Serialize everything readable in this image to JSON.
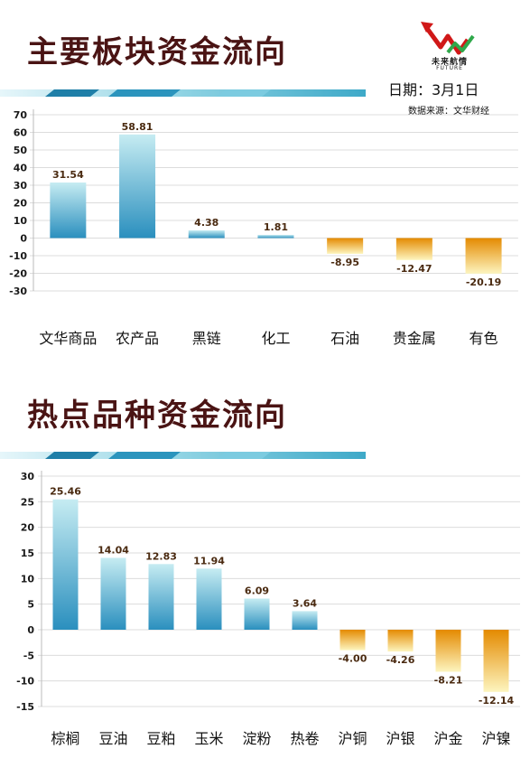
{
  "header": {
    "title1": "主要板块资金流向",
    "title2": "热点品种资金流向",
    "logo_text": "未来航情",
    "logo_sub": "FUTURE",
    "date": "日期：3月1日",
    "source": "数据来源：文华财经"
  },
  "colors": {
    "title": "#4a1414",
    "positive_top": "#c6ecf2",
    "positive_bottom": "#2a8fbe",
    "negative_top": "#e48a00",
    "negative_bottom": "#fdf5bf",
    "divider_blue": "#4ab4d0"
  },
  "chart_data": [
    {
      "type": "bar",
      "title": "主要板块资金流向",
      "categories": [
        "文华商品",
        "农产品",
        "黑链",
        "化工",
        "石油",
        "贵金属",
        "有色"
      ],
      "values": [
        31.54,
        58.81,
        4.38,
        1.81,
        -8.95,
        -12.47,
        -20.19
      ],
      "ylim": [
        -30,
        70
      ],
      "yticks": [
        70,
        60,
        50,
        40,
        30,
        20,
        10,
        0,
        -10,
        -20,
        -30
      ],
      "grid": true,
      "legend": "none"
    },
    {
      "type": "bar",
      "title": "热点品种资金流向",
      "categories": [
        "棕榈",
        "豆油",
        "豆粕",
        "玉米",
        "淀粉",
        "热卷",
        "沪铜",
        "沪银",
        "沪金",
        "沪镍"
      ],
      "values": [
        25.46,
        14.04,
        12.83,
        11.94,
        6.09,
        3.64,
        -4.0,
        -4.26,
        -8.21,
        -12.14
      ],
      "ylim": [
        -15,
        30
      ],
      "yticks": [
        30,
        25,
        20,
        15,
        10,
        5,
        0,
        -5,
        -10,
        -15
      ],
      "grid": true,
      "legend": "none"
    }
  ]
}
